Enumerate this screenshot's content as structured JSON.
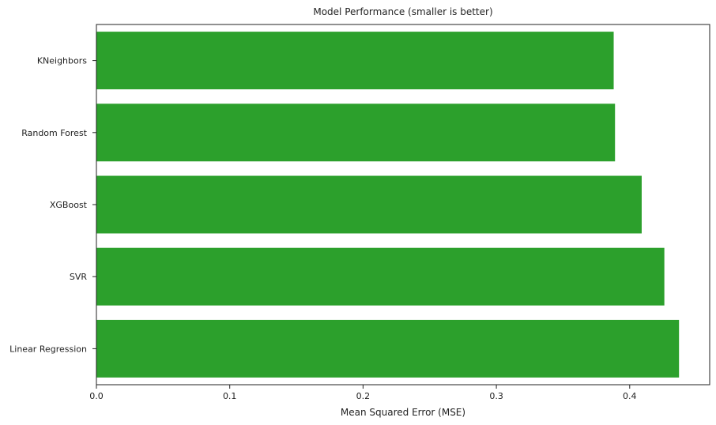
{
  "chart_data": {
    "type": "bar",
    "orientation": "horizontal",
    "title": "Model Performance (smaller is better)",
    "xlabel": "Mean Squared Error (MSE)",
    "ylabel": "",
    "categories": [
      "KNeighbors",
      "Random Forest",
      "XGBoost",
      "SVR",
      "Linear Regression"
    ],
    "values": [
      0.388,
      0.389,
      0.409,
      0.426,
      0.437
    ],
    "xlim": [
      0,
      0.46
    ],
    "xticks": [
      0.0,
      0.1,
      0.2,
      0.3,
      0.4
    ],
    "xtick_labels": [
      "0.0",
      "0.1",
      "0.2",
      "0.3",
      "0.4"
    ],
    "bar_color": "#2ca02c",
    "grid": false,
    "legend": "none"
  }
}
